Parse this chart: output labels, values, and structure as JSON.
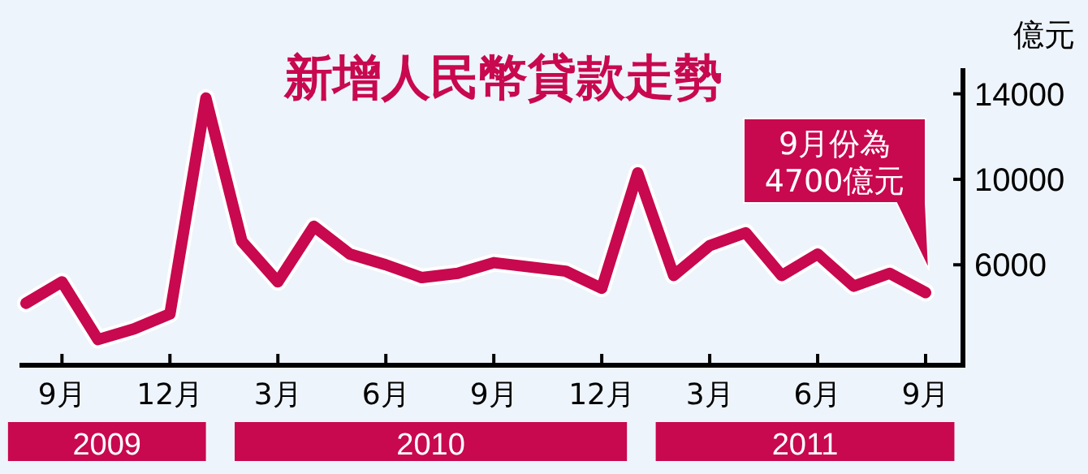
{
  "chart_data": {
    "type": "line",
    "title": "新增人民幣貸款走勢",
    "ylabel": "億元",
    "categories": [
      null,
      "9月",
      null,
      null,
      "12月",
      null,
      null,
      "3月",
      null,
      null,
      "6月",
      null,
      null,
      "9月",
      null,
      null,
      "12月",
      null,
      null,
      "3月",
      null,
      null,
      "6月",
      null,
      null,
      "9月"
    ],
    "series": [
      {
        "color": "#c8084f",
        "values": [
          4200,
          5200,
          2500,
          3000,
          3700,
          13800,
          7100,
          5200,
          7800,
          6500,
          6000,
          5400,
          5600,
          6100,
          5900,
          5700,
          4900,
          10300,
          5500,
          6900,
          7500,
          5500,
          6500,
          5000,
          5600,
          4700
        ]
      }
    ],
    "ylim": [
      1300,
      15200
    ],
    "yticks": [
      6000,
      10000,
      14000
    ],
    "grid": false,
    "annotations": [
      "9月份為 4700億元",
      "2009",
      "2010",
      "2011"
    ]
  }
}
